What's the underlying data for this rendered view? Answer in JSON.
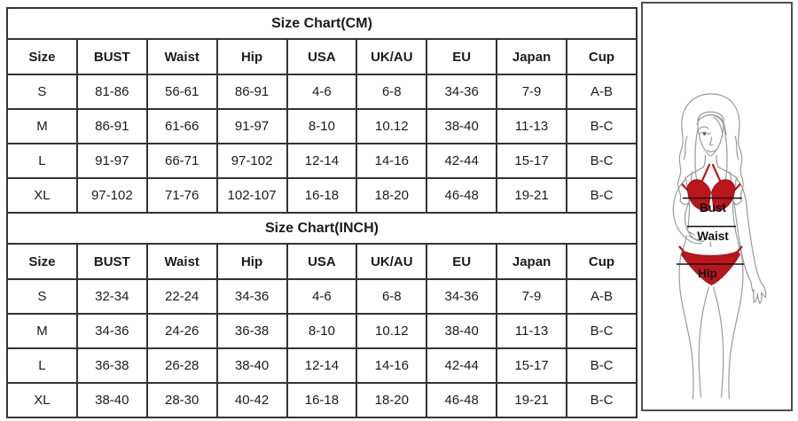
{
  "colors": {
    "table_border": "#333333",
    "text": "#1b1b1b",
    "bikini_red": "#bb161c",
    "bikini_outline": "#8c0f14",
    "body_outline": "#9b9b9b",
    "label_black": "#111111",
    "panel_border": "#4f4f4f"
  },
  "chart_data": [
    {
      "type": "table",
      "title": "Size Chart(CM)",
      "columns": [
        "Size",
        "BUST",
        "Waist",
        "Hip",
        "USA",
        "UK/AU",
        "EU",
        "Japan",
        "Cup"
      ],
      "rows": [
        [
          "S",
          "81-86",
          "56-61",
          "86-91",
          "4-6",
          "6-8",
          "34-36",
          "7-9",
          "A-B"
        ],
        [
          "M",
          "86-91",
          "61-66",
          "91-97",
          "8-10",
          "10.12",
          "38-40",
          "11-13",
          "B-C"
        ],
        [
          "L",
          "91-97",
          "66-71",
          "97-102",
          "12-14",
          "14-16",
          "42-44",
          "15-17",
          "B-C"
        ],
        [
          "XL",
          "97-102",
          "71-76",
          "102-107",
          "16-18",
          "18-20",
          "46-48",
          "19-21",
          "B-C"
        ]
      ]
    },
    {
      "type": "table",
      "title": "Size Chart(INCH)",
      "columns": [
        "Size",
        "BUST",
        "Waist",
        "Hip",
        "USA",
        "UK/AU",
        "EU",
        "Japan",
        "Cup"
      ],
      "rows": [
        [
          "S",
          "32-34",
          "22-24",
          "34-36",
          "4-6",
          "6-8",
          "34-36",
          "7-9",
          "A-B"
        ],
        [
          "M",
          "34-36",
          "24-26",
          "36-38",
          "8-10",
          "10.12",
          "38-40",
          "11-13",
          "B-C"
        ],
        [
          "L",
          "36-38",
          "26-28",
          "38-40",
          "12-14",
          "14-16",
          "42-44",
          "15-17",
          "B-C"
        ],
        [
          "XL",
          "38-40",
          "28-30",
          "40-42",
          "16-18",
          "18-20",
          "46-48",
          "19-21",
          "B-C"
        ]
      ]
    }
  ],
  "figure": {
    "labels": {
      "bust": "Bust",
      "waist": "Waist",
      "hip": "Hip"
    }
  }
}
